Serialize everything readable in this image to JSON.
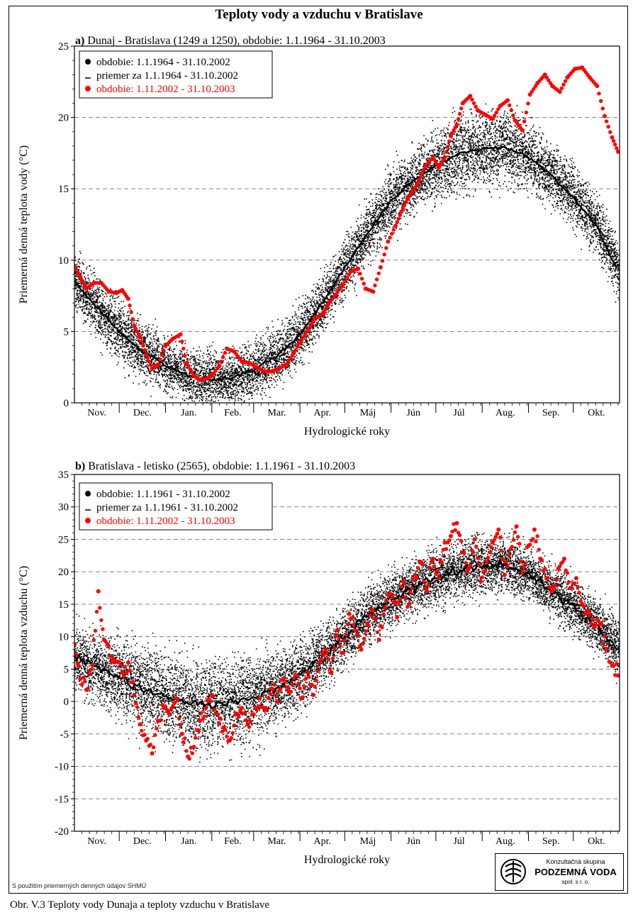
{
  "page": {
    "title": "Teploty vody a vzduchu v Bratislave",
    "caption": "Obr. V.3 Teploty vody Dunaja a teploty vzduchu v Bratislave",
    "footnote": "S použitím priemerných denných údajov SHMÚ",
    "logo": {
      "line1": "Konzultačná skupina",
      "line2": "PODZEMNÁ VODA",
      "line3": "spol. s r. o."
    }
  },
  "chart_data": [
    {
      "type": "scatter",
      "panel_label": "a)",
      "title": "Dunaj - Bratislava (1249 a 1250), obdobie: 1.1.1964 - 31.10.2003",
      "xlabel": "Hydrologické roky",
      "ylabel": "Priemerná denná teplota vody (°C)",
      "x_categories": [
        "Nov.",
        "Dec.",
        "Jan.",
        "Feb.",
        "Mar.",
        "Apr.",
        "Máj",
        "Jún",
        "Júl",
        "Aug.",
        "Sep.",
        "Okt."
      ],
      "x_unit": "day of hydrological year (0 = 1 Nov)",
      "ylim": [
        0,
        25
      ],
      "yticks": [
        0,
        5,
        10,
        15,
        20,
        25
      ],
      "grid": "horizontal dashed",
      "legend_position": "top-left",
      "series": [
        {
          "name": "obdobie: 1.1.1964 - 31.10.2002",
          "color": "#000000",
          "marker": "dot-cloud",
          "mean_x": [
            0,
            15,
            30,
            46,
            61,
            76,
            92,
            107,
            120,
            135,
            151,
            166,
            181,
            196,
            212,
            227,
            242,
            258,
            273,
            288,
            303,
            319,
            334,
            349,
            364
          ],
          "mean_y": [
            8.5,
            6.7,
            5.0,
            3.6,
            2.6,
            1.9,
            1.6,
            1.8,
            2.3,
            3.2,
            4.8,
            7.0,
            9.5,
            11.8,
            14.2,
            15.6,
            16.6,
            17.5,
            17.8,
            17.9,
            17.3,
            16.0,
            14.4,
            12.5,
            9.2
          ],
          "spread": [
            2.1,
            2.0,
            2.0,
            1.9,
            1.8,
            1.8,
            1.8,
            1.8,
            1.8,
            1.9,
            2.0,
            2.0,
            2.0,
            2.0,
            2.1,
            2.2,
            2.4,
            2.5,
            2.5,
            2.4,
            2.3,
            2.1,
            2.0,
            2.0,
            2.0
          ]
        },
        {
          "name": "priemer za 1.1.1964 - 31.10.2002",
          "color": "#000000",
          "marker": "line"
        },
        {
          "name": "obdobie: 1.11.2002 - 31.10.2003",
          "color": "#ff0000",
          "marker": "dot",
          "x": [
            0,
            4,
            8,
            13,
            18,
            23,
            28,
            32,
            36,
            40,
            44,
            48,
            52,
            56,
            61,
            66,
            71,
            75,
            80,
            84,
            88,
            92,
            97,
            102,
            107,
            112,
            117,
            122,
            127,
            132,
            137,
            142,
            147,
            152,
            157,
            161,
            166,
            170,
            175,
            180,
            185,
            190,
            195,
            200,
            205,
            210,
            215,
            219,
            223,
            227,
            231,
            235,
            240,
            244,
            248,
            252,
            256,
            260,
            265,
            270,
            275,
            280,
            285,
            290,
            295,
            300,
            305,
            310,
            315,
            320,
            325,
            330,
            335,
            340,
            345,
            350,
            355,
            360,
            364
          ],
          "y": [
            9.6,
            8.8,
            8.0,
            8.4,
            8.4,
            7.8,
            7.7,
            7.9,
            7.3,
            5.4,
            4.6,
            3.4,
            2.4,
            2.7,
            4.0,
            4.5,
            4.8,
            2.8,
            1.9,
            1.6,
            1.7,
            1.9,
            2.6,
            3.8,
            3.6,
            2.9,
            2.8,
            2.5,
            2.2,
            2.2,
            2.4,
            2.7,
            3.5,
            4.4,
            5.2,
            5.9,
            6.2,
            6.9,
            7.6,
            8.3,
            9.2,
            9.4,
            8.0,
            7.8,
            9.5,
            11.3,
            12.4,
            13.4,
            14.3,
            14.9,
            15.6,
            16.6,
            17.2,
            16.5,
            17.2,
            18.7,
            19.5,
            21.0,
            21.5,
            20.5,
            20.2,
            19.9,
            20.8,
            21.2,
            19.8,
            19.1,
            21.6,
            22.4,
            23.0,
            22.2,
            21.8,
            22.8,
            23.4,
            23.5,
            22.8,
            22.2,
            20.1,
            18.6,
            17.6
          ]
        }
      ]
    },
    {
      "type": "scatter",
      "panel_label": "b)",
      "title": "Bratislava - letisko (2565), obdobie:  1.1.1961 - 31.10.2003",
      "xlabel": "Hydrologické roky",
      "ylabel": "Priemerná denná teplota vzduchu (°C)",
      "x_categories": [
        "Nov.",
        "Dec.",
        "Jan.",
        "Feb.",
        "Mar.",
        "Apr.",
        "Máj",
        "Jún",
        "Júl",
        "Aug.",
        "Sep.",
        "Okt."
      ],
      "x_unit": "day of hydrological year (0 = 1 Nov)",
      "ylim": [
        -20,
        35
      ],
      "yticks": [
        -20,
        -15,
        -10,
        -5,
        0,
        5,
        10,
        15,
        20,
        25,
        30,
        35
      ],
      "grid": "horizontal dashed",
      "legend_position": "top-left",
      "series": [
        {
          "name": "obdobie: 1.1.1961 - 31.10.2002",
          "color": "#000000",
          "marker": "dot-cloud",
          "mean_x": [
            0,
            15,
            30,
            46,
            61,
            76,
            92,
            107,
            120,
            135,
            151,
            166,
            181,
            196,
            212,
            227,
            242,
            258,
            273,
            288,
            303,
            319,
            334,
            349,
            364
          ],
          "mean_y": [
            7.0,
            5.2,
            3.6,
            2.0,
            0.6,
            -0.4,
            -0.6,
            -0.2,
            0.7,
            2.0,
            4.2,
            7.0,
            10.0,
            13.3,
            15.8,
            17.6,
            19.1,
            20.3,
            21.0,
            21.0,
            19.8,
            17.2,
            14.6,
            11.7,
            8.4
          ],
          "spread": [
            4.5,
            5.0,
            5.6,
            6.0,
            6.3,
            6.5,
            6.5,
            6.5,
            6.3,
            5.8,
            5.1,
            4.6,
            4.4,
            4.3,
            4.2,
            4.2,
            4.3,
            4.3,
            4.3,
            4.2,
            4.0,
            3.8,
            3.8,
            3.9,
            4.0
          ]
        },
        {
          "name": "priemer za 1.1.1961 - 31.10.2002",
          "color": "#000000",
          "marker": "line"
        },
        {
          "name": "obdobie: 1.11.2002 - 31.10.2003",
          "color": "#ff0000",
          "marker": "dot",
          "x": [
            0,
            4,
            8,
            12,
            16,
            20,
            24,
            28,
            32,
            36,
            40,
            44,
            48,
            52,
            56,
            60,
            64,
            68,
            72,
            76,
            80,
            84,
            88,
            92,
            96,
            100,
            104,
            108,
            112,
            116,
            120,
            124,
            128,
            132,
            136,
            140,
            144,
            148,
            152,
            156,
            160,
            164,
            168,
            172,
            176,
            180,
            184,
            188,
            192,
            196,
            200,
            204,
            208,
            212,
            216,
            220,
            224,
            228,
            232,
            236,
            240,
            244,
            248,
            252,
            256,
            260,
            264,
            268,
            272,
            276,
            280,
            284,
            288,
            292,
            296,
            300,
            304,
            308,
            312,
            316,
            320,
            324,
            328,
            332,
            336,
            340,
            344,
            348,
            352,
            356,
            360,
            364
          ],
          "y": [
            8.8,
            3.5,
            1.8,
            5.6,
            17.0,
            9.5,
            7.0,
            6.2,
            4.5,
            6.0,
            1.0,
            -3.5,
            -6.0,
            -8.0,
            -3.0,
            -1.0,
            -2.0,
            0.5,
            -5.0,
            -8.5,
            -7.0,
            -3.0,
            -1.0,
            1.0,
            -2.0,
            -4.0,
            -6.0,
            -2.0,
            -1.0,
            -3.5,
            -2.0,
            0.5,
            -1.0,
            2.0,
            0.0,
            3.5,
            1.5,
            4.0,
            0.5,
            4.5,
            1.0,
            6.0,
            8.0,
            4.5,
            11.0,
            7.5,
            13.5,
            11.0,
            8.0,
            12.0,
            14.0,
            9.5,
            14.5,
            16.5,
            13.0,
            18.5,
            15.0,
            19.5,
            21.5,
            17.0,
            22.0,
            19.0,
            24.5,
            25.5,
            27.5,
            23.0,
            20.5,
            25.0,
            18.5,
            21.5,
            24.5,
            26.5,
            19.5,
            23.5,
            27.0,
            20.0,
            24.0,
            26.5,
            22.0,
            19.0,
            17.0,
            20.5,
            22.0,
            17.5,
            19.0,
            15.0,
            14.0,
            11.5,
            12.0,
            8.0,
            5.5,
            4.0
          ]
        }
      ]
    }
  ]
}
